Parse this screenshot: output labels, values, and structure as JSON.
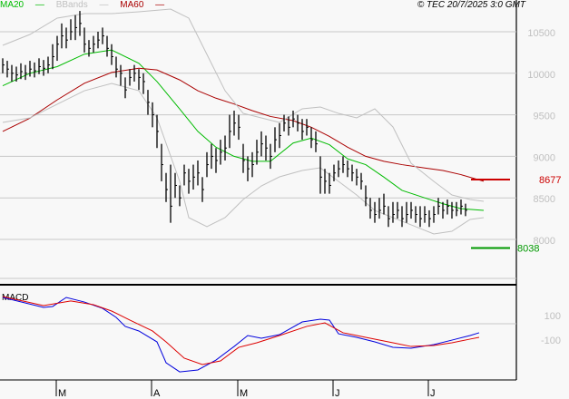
{
  "header": {
    "legend": [
      {
        "label": "MA20",
        "color": "#00bb00"
      },
      {
        "label": "BBands",
        "color": "#c0c0c0"
      },
      {
        "label": "MA60",
        "color": "#aa0000"
      }
    ],
    "copyright": "© TEC 20/7/2025 3:0 GMT"
  },
  "chart_data": [
    {
      "type": "ohlc",
      "title": "",
      "ylim": [
        7600,
        10800
      ],
      "grid": true,
      "y_ticks": [
        {
          "value": 10500,
          "label": "10500"
        },
        {
          "value": 10000,
          "label": "10000"
        },
        {
          "value": 9500,
          "label": "9500"
        },
        {
          "value": 9000,
          "label": "9000"
        },
        {
          "value": 8500,
          "label": "8500"
        },
        {
          "value": 8000,
          "label": "8000"
        }
      ],
      "x_ticks": [
        {
          "index": 12,
          "label": "M"
        },
        {
          "index": 33,
          "label": "A"
        },
        {
          "index": 52,
          "label": "M"
        },
        {
          "index": 73,
          "label": "J"
        },
        {
          "index": 94,
          "label": "J"
        }
      ],
      "bars_hlc": [
        [
          10180,
          10000,
          10100
        ],
        [
          10150,
          9950,
          10050
        ],
        [
          10100,
          9900,
          10000
        ],
        [
          10080,
          9900,
          9980
        ],
        [
          10120,
          9930,
          10020
        ],
        [
          10100,
          9920,
          10000
        ],
        [
          10150,
          9960,
          10050
        ],
        [
          10130,
          9950,
          10030
        ],
        [
          10180,
          9990,
          10080
        ],
        [
          10160,
          9970,
          10060
        ],
        [
          10200,
          10000,
          10100
        ],
        [
          10350,
          10050,
          10200
        ],
        [
          10450,
          10150,
          10350
        ],
        [
          10600,
          10300,
          10450
        ],
        [
          10550,
          10300,
          10400
        ],
        [
          10650,
          10400,
          10500
        ],
        [
          10700,
          10400,
          10550
        ],
        [
          10750,
          10450,
          10600
        ],
        [
          10550,
          10250,
          10350
        ],
        [
          10400,
          10200,
          10300
        ],
        [
          10450,
          10250,
          10350
        ],
        [
          10500,
          10300,
          10400
        ],
        [
          10550,
          10350,
          10450
        ],
        [
          10450,
          10200,
          10300
        ],
        [
          10350,
          10100,
          10200
        ],
        [
          10200,
          9950,
          10050
        ],
        [
          10100,
          9850,
          10000
        ],
        [
          9950,
          9700,
          9800
        ],
        [
          10050,
          9850,
          9950
        ],
        [
          10100,
          9900,
          10000
        ],
        [
          10050,
          9800,
          9950
        ],
        [
          10000,
          9750,
          9900
        ],
        [
          9800,
          9500,
          9650
        ],
        [
          9650,
          9350,
          9500
        ],
        [
          9500,
          9100,
          9300
        ],
        [
          9150,
          8700,
          8900
        ],
        [
          8800,
          8450,
          8600
        ],
        [
          8900,
          8200,
          8400
        ],
        [
          8800,
          8500,
          8650
        ],
        [
          8650,
          8400,
          8500
        ],
        [
          8900,
          8650,
          8800
        ],
        [
          8850,
          8550,
          8700
        ],
        [
          8900,
          8600,
          8750
        ],
        [
          8950,
          8650,
          8800
        ],
        [
          8750,
          8450,
          8600
        ],
        [
          9050,
          8750,
          8900
        ],
        [
          9150,
          8850,
          9000
        ],
        [
          9100,
          8800,
          8950
        ],
        [
          9200,
          8900,
          9050
        ],
        [
          9250,
          8950,
          9100
        ],
        [
          9500,
          9100,
          9300
        ],
        [
          9550,
          9250,
          9400
        ],
        [
          9500,
          9200,
          9350
        ],
        [
          9150,
          8800,
          8950
        ],
        [
          9000,
          8700,
          8850
        ],
        [
          9050,
          8750,
          8900
        ],
        [
          9200,
          8900,
          9050
        ],
        [
          9300,
          9000,
          9150
        ],
        [
          9250,
          8950,
          9100
        ],
        [
          9150,
          8850,
          9000
        ],
        [
          9350,
          9050,
          9200
        ],
        [
          9400,
          9100,
          9250
        ],
        [
          9500,
          9300,
          9400
        ],
        [
          9480,
          9250,
          9350
        ],
        [
          9550,
          9350,
          9450
        ],
        [
          9500,
          9300,
          9400
        ],
        [
          9450,
          9200,
          9300
        ],
        [
          9450,
          9250,
          9350
        ],
        [
          9350,
          9100,
          9200
        ],
        [
          9300,
          9050,
          9150
        ],
        [
          9000,
          8550,
          8750
        ],
        [
          8850,
          8550,
          8700
        ],
        [
          8800,
          8550,
          8650
        ],
        [
          8900,
          8700,
          8800
        ],
        [
          8950,
          8750,
          8850
        ],
        [
          9000,
          8800,
          8900
        ],
        [
          8950,
          8750,
          8850
        ],
        [
          8900,
          8700,
          8800
        ],
        [
          8850,
          8650,
          8750
        ],
        [
          8800,
          8600,
          8700
        ],
        [
          8650,
          8400,
          8500
        ],
        [
          8500,
          8250,
          8350
        ],
        [
          8450,
          8200,
          8300
        ],
        [
          8500,
          8250,
          8350
        ],
        [
          8550,
          8300,
          8400
        ],
        [
          8400,
          8150,
          8250
        ],
        [
          8450,
          8200,
          8300
        ],
        [
          8450,
          8250,
          8350
        ],
        [
          8400,
          8150,
          8250
        ],
        [
          8450,
          8200,
          8300
        ],
        [
          8450,
          8250,
          8350
        ],
        [
          8400,
          8200,
          8300
        ],
        [
          8400,
          8150,
          8250
        ],
        [
          8400,
          8200,
          8300
        ],
        [
          8350,
          8150,
          8250
        ],
        [
          8400,
          8200,
          8300
        ],
        [
          8500,
          8300,
          8400
        ],
        [
          8450,
          8250,
          8350
        ],
        [
          8480,
          8300,
          8400
        ],
        [
          8450,
          8250,
          8350
        ],
        [
          8450,
          8280,
          8350
        ],
        [
          8480,
          8300,
          8400
        ],
        [
          8430,
          8280,
          8350
        ]
      ],
      "series": [
        {
          "name": "MA20",
          "color": "#00bb00",
          "points": [
            [
              0,
              9850
            ],
            [
              6,
              10000
            ],
            [
              12,
              10080
            ],
            [
              18,
              10230
            ],
            [
              24,
              10280
            ],
            [
              30,
              10120
            ],
            [
              34,
              9900
            ],
            [
              39,
              9570
            ],
            [
              43,
              9300
            ],
            [
              47,
              9110
            ],
            [
              51,
              9000
            ],
            [
              55,
              8940
            ],
            [
              59,
              8940
            ],
            [
              64,
              9160
            ],
            [
              68,
              9220
            ],
            [
              72,
              9140
            ],
            [
              76,
              8970
            ],
            [
              80,
              8900
            ],
            [
              84,
              8750
            ],
            [
              88,
              8590
            ],
            [
              93,
              8500
            ],
            [
              97,
              8430
            ],
            [
              101,
              8370
            ],
            [
              106,
              8350
            ]
          ]
        },
        {
          "name": "MA60",
          "color": "#aa0000",
          "points": [
            [
              0,
              9300
            ],
            [
              6,
              9460
            ],
            [
              12,
              9680
            ],
            [
              18,
              9880
            ],
            [
              24,
              10010
            ],
            [
              30,
              10060
            ],
            [
              34,
              10040
            ],
            [
              39,
              9920
            ],
            [
              43,
              9790
            ],
            [
              47,
              9700
            ],
            [
              51,
              9630
            ],
            [
              55,
              9550
            ],
            [
              59,
              9480
            ],
            [
              64,
              9430
            ],
            [
              68,
              9350
            ],
            [
              72,
              9240
            ],
            [
              76,
              9110
            ],
            [
              80,
              9000
            ],
            [
              84,
              8940
            ],
            [
              88,
              8900
            ],
            [
              93,
              8860
            ],
            [
              97,
              8830
            ],
            [
              101,
              8780
            ],
            [
              106,
              8700
            ]
          ]
        },
        {
          "name": "BBands",
          "color": "#c0c0c0",
          "band": "upper",
          "points": [
            [
              0,
              10336
            ],
            [
              6,
              10467
            ],
            [
              12,
              10664
            ],
            [
              18,
              10718
            ],
            [
              24,
              10718
            ],
            [
              30,
              10740
            ],
            [
              37,
              10773
            ],
            [
              41,
              10664
            ],
            [
              45,
              10227
            ],
            [
              49,
              9790
            ],
            [
              53,
              9517
            ],
            [
              57,
              9463
            ],
            [
              61,
              9408
            ],
            [
              66,
              9572
            ],
            [
              70,
              9594
            ],
            [
              74,
              9517
            ],
            [
              78,
              9463
            ],
            [
              82,
              9572
            ],
            [
              86,
              9354
            ],
            [
              90,
              8917
            ],
            [
              95,
              8699
            ],
            [
              99,
              8535
            ],
            [
              103,
              8480
            ],
            [
              106,
              8459
            ]
          ]
        },
        {
          "name": "BBands",
          "color": "#c0c0c0",
          "band": "lower",
          "points": [
            [
              0,
              9408
            ],
            [
              6,
              9463
            ],
            [
              12,
              9627
            ],
            [
              18,
              9790
            ],
            [
              24,
              9878
            ],
            [
              30,
              9790
            ],
            [
              34,
              9463
            ],
            [
              39,
              8699
            ],
            [
              41,
              8262
            ],
            [
              45,
              8153
            ],
            [
              49,
              8262
            ],
            [
              53,
              8480
            ],
            [
              57,
              8644
            ],
            [
              61,
              8753
            ],
            [
              66,
              8830
            ],
            [
              70,
              8862
            ],
            [
              74,
              8699
            ],
            [
              78,
              8535
            ],
            [
              82,
              8349
            ],
            [
              86,
              8262
            ],
            [
              90,
              8175
            ],
            [
              95,
              8066
            ],
            [
              99,
              8098
            ],
            [
              103,
              8240
            ],
            [
              106,
              8262
            ]
          ]
        }
      ],
      "markers": [
        {
          "label": "8677",
          "value": 8677,
          "color": "#cc0000"
        },
        {
          "label": "8038",
          "value": 8038,
          "color": "#009900"
        }
      ]
    },
    {
      "type": "line",
      "title": "MACD",
      "ylim": [
        -480,
        230
      ],
      "y_ticks": [
        {
          "value": 100,
          "label": "100"
        },
        {
          "value": -100,
          "label": "-100"
        }
      ],
      "zero_line": true,
      "series": [
        {
          "color": "#0000dd",
          "points": [
            [
              0,
              207
            ],
            [
              9,
              129
            ],
            [
              11,
              136
            ],
            [
              14,
              207
            ],
            [
              18,
              171
            ],
            [
              22,
              121
            ],
            [
              25,
              50
            ],
            [
              27,
              -21
            ],
            [
              30,
              -57
            ],
            [
              34,
              -143
            ],
            [
              36,
              -307
            ],
            [
              39,
              -379
            ],
            [
              43,
              -364
            ],
            [
              47,
              -286
            ],
            [
              51,
              -179
            ],
            [
              54,
              -93
            ],
            [
              57,
              -114
            ],
            [
              61,
              -86
            ],
            [
              66,
              14
            ],
            [
              70,
              36
            ],
            [
              72,
              29
            ],
            [
              74,
              -79
            ],
            [
              78,
              -107
            ],
            [
              82,
              -143
            ],
            [
              86,
              -186
            ],
            [
              90,
              -193
            ],
            [
              95,
              -164
            ],
            [
              99,
              -129
            ],
            [
              103,
              -93
            ],
            [
              105,
              -71
            ]
          ]
        },
        {
          "color": "#dd0000",
          "points": [
            [
              0,
              214
            ],
            [
              9,
              143
            ],
            [
              15,
              179
            ],
            [
              20,
              150
            ],
            [
              24,
              100
            ],
            [
              28,
              29
            ],
            [
              33,
              -57
            ],
            [
              36,
              -143
            ],
            [
              40,
              -271
            ],
            [
              44,
              -321
            ],
            [
              48,
              -293
            ],
            [
              52,
              -186
            ],
            [
              56,
              -150
            ],
            [
              61,
              -93
            ],
            [
              67,
              -21
            ],
            [
              71,
              7
            ],
            [
              75,
              -71
            ],
            [
              80,
              -107
            ],
            [
              86,
              -150
            ],
            [
              90,
              -179
            ],
            [
              95,
              -171
            ],
            [
              99,
              -150
            ],
            [
              103,
              -121
            ],
            [
              105,
              -107
            ]
          ]
        }
      ]
    }
  ]
}
